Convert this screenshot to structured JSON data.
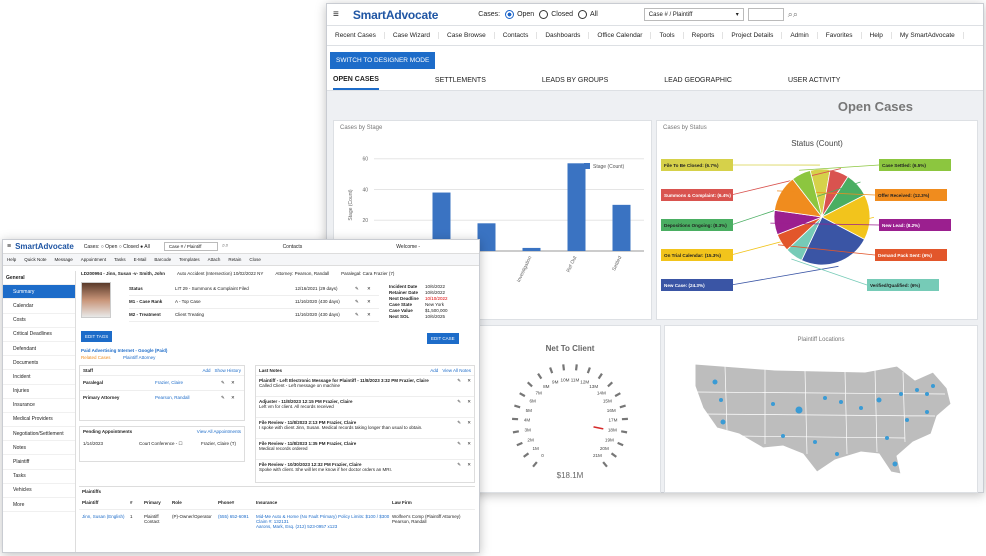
{
  "header": {
    "logo": "SmartAdvocate",
    "cases_label": "Cases:",
    "radio_open": "Open",
    "radio_closed": "Closed",
    "radio_all": "All",
    "search_select": "Case # / Plaintiff"
  },
  "nav": [
    "Recent Cases",
    "Case Wizard",
    "Case Browse",
    "Contacts",
    "Dashboards",
    "Office Calendar",
    "Tools",
    "Reports",
    "Project Details",
    "Admin",
    "Favorites",
    "Help",
    "My SmartAdvocate"
  ],
  "switch_button": "SWITCH TO DESIGNER MODE",
  "tabs": [
    "OPEN CASES",
    "SETTLEMENTS",
    "LEADS BY GROUPS",
    "LEAD GEOGRAPHIC",
    "USER ACTIVITY"
  ],
  "page_title": "Open Cases",
  "bar_panel": {
    "title": "Cases by Stage",
    "legend": "Stage (Count)",
    "ylabel": "Stage (Count)"
  },
  "pie_panel": {
    "title": "Cases by Status",
    "chart_title": "Status (Count)"
  },
  "gauge_panel": {
    "title": "Net To Client",
    "value": "$18.1M",
    "ticks": [
      "0",
      "1M",
      "2M",
      "3M",
      "4M",
      "5M",
      "6M",
      "7M",
      "8M",
      "9M",
      "10M",
      "11M",
      "12M",
      "13M",
      "14M",
      "15M",
      "16M",
      "17M",
      "18M",
      "19M",
      "20M",
      "21M"
    ]
  },
  "map_panel": {
    "title": "Plaintiff Locations"
  },
  "chart_data": [
    {
      "type": "bar",
      "title": "Cases by Stage",
      "ylabel": "Stage (Count)",
      "series": [
        {
          "name": "Stage (Count)",
          "values": [
            3,
            38,
            18,
            2,
            57,
            30
          ]
        }
      ],
      "categories": [
        "",
        "",
        "",
        "Investigation",
        "Ref Out",
        "Settled"
      ],
      "yticks": [
        20,
        40,
        60
      ],
      "ylim": [
        0,
        65
      ]
    },
    {
      "type": "pie",
      "title": "Status (Count)",
      "slices": [
        {
          "label": "File To Be Closed: (6.7%)",
          "value": 6.7,
          "color": "#d6d14a"
        },
        {
          "label": "Summons & Complaint: (6.4%)",
          "value": 6.4,
          "color": "#d9534f"
        },
        {
          "label": "Depositions Ongoing: (8.3%)",
          "value": 8.3,
          "color": "#4aae62"
        },
        {
          "label": "On Trial Calendar: (15.3%)",
          "value": 15.3,
          "color": "#f2c41c"
        },
        {
          "label": "New Case: (24.3%)",
          "value": 24.3,
          "color": "#3a55a5"
        },
        {
          "label": "Verified/Qualified: (6%)",
          "value": 6,
          "color": "#76cbb7"
        },
        {
          "label": "Demand Pack Sent: (6%)",
          "value": 6,
          "color": "#e2562b"
        },
        {
          "label": "New Lead: (8.2%)",
          "value": 8.2,
          "color": "#9b1f8f"
        },
        {
          "label": "Offer Received: (12.3%)",
          "value": 12.3,
          "color": "#f08c1e"
        },
        {
          "label": "Case Settled: (6.5%)",
          "value": 6.5,
          "color": "#8cc63f"
        }
      ]
    }
  ],
  "small": {
    "logo": "SmartAdvocate",
    "top": "Cases:  ○ Open  ○ Closed  ● All",
    "top_sel": "Case # / Plaintiff",
    "contacts": "Contacts",
    "welcome": "Welcome -",
    "toolbar": [
      "Help",
      "Quick Note",
      "Message",
      "Appointment",
      "Tasks",
      "E-Mail",
      "Barcode",
      "Templates",
      "Attach",
      "Retain",
      "Close"
    ],
    "side": [
      "General",
      "Summary",
      "Calendar",
      "Costs",
      "Critical Deadlines",
      "Defendant",
      "Documents",
      "Incident",
      "Injuries",
      "Insurance",
      "Medical Providers",
      "Negotiation/Settlement",
      "Notes",
      "Plaintiff",
      "Tasks",
      "Vehicles",
      "More"
    ],
    "case_title": "LD200994 - Jinn, Susan -v- Smith, John",
    "case_type": "Auto Accident (Intersection) 10/02/2022 NY",
    "attorney": "Attorney: Pearson, Randall",
    "paralegal": "Paralegal: Cara Frazier (7)",
    "status_rows": [
      {
        "k": "Status",
        "v": "LIT 29 - Summons & Complaint Filed",
        "d": "12/16/2021 (29 days)"
      },
      {
        "k": "M1 - Case Rank",
        "v": "A - Top Case",
        "d": "11/16/2020 (430 days)"
      },
      {
        "k": "M2 - Treatment",
        "v": "Client Treating",
        "d": "11/16/2020 (430 days)"
      }
    ],
    "info_rows": [
      {
        "k": "Incident Date",
        "v": "10/6/2022"
      },
      {
        "k": "Retainer Date",
        "v": "10/6/2022"
      },
      {
        "k": "Next Deadline",
        "v": "10/10/2022"
      },
      {
        "k": "Case State",
        "v": "New York"
      },
      {
        "k": "Case Value",
        "v": "$1,500,000"
      },
      {
        "k": "Next SOL",
        "v": "10/6/2025"
      }
    ],
    "edit_tags": "EDIT TAGS",
    "edit_case": "EDIT CASE",
    "paid_adv": "Paid Advertising Internet - Google (Paid)",
    "related": "Related Cases",
    "plaintiff_att": "Plaintiff Attorney",
    "staff_title": "Staff",
    "staff_add": "Add",
    "staff_hist": "Show History",
    "staff": [
      {
        "role": "Paralegal",
        "name": "Frazier, Claire"
      },
      {
        "role": "Primary Attorney",
        "name": "Pearson, Randall"
      }
    ],
    "pending_title": "Pending Appointments",
    "pending_link": "View All Appointments",
    "pending": {
      "date": "1/14/2023",
      "what": "Court Conference - ☐",
      "who": "Frazier, Claire (T)"
    },
    "notes_title": "Last Notes",
    "notes_add": "Add",
    "notes_view": "View All Notes",
    "notes": [
      {
        "h": "Plaintiff - Left Electronic Message for Plaintiff - 11/8/2023 3:32 PM Frazier, Claire",
        "b": "Called Client - Left message on machine"
      },
      {
        "h": "Adjuster - 11/8/2023 12:15 PM Frazier, Claire",
        "b": "Left vm for client. All records received"
      },
      {
        "h": "File Review - 11/8/2023 2:13 PM Frazier, Claire",
        "b": "I spoke with client Jinn, Susan. Medical records taking longer than usual to obtain."
      },
      {
        "h": "File Review - 11/8/2023 1:35 PM Frazier, Claire",
        "b": "Medical records ordered"
      },
      {
        "h": "File Review - 10/30/2023 12:32 PM Frazier, Claire",
        "b": "Spoke with client. She will let me know if her doctor orders an MRI."
      }
    ],
    "plaintiffs_title": "Plaintiffs",
    "pl_headers": [
      "Plaintiff",
      "#",
      "Primary",
      "Role",
      "Phone#",
      "Insurance",
      "Law Firm"
    ],
    "pl_row": {
      "name": "Jinn, Susan (English)",
      "num": "1",
      "primary": "Plaintiff Contact",
      "role": "(P)-Owner/Operator",
      "phone": "(555) 652-6091",
      "ins": "Mid-Me Auto & Home (No Fault Primary) Policy Limits: $100 / $300 Claim #: 132131",
      "ins2": "Aarons, Mark, Esq. (212) 523-0957 x123",
      "firm": "Wolfner's Comp (Plaintiff Attorney) Pearson, Randall"
    }
  }
}
